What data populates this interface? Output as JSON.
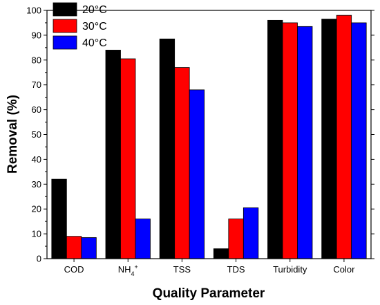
{
  "chart_data": {
    "type": "bar",
    "xlabel": "Quality Parameter",
    "ylabel": "Removal (%)",
    "ylim": [
      0,
      100
    ],
    "yticks": [
      0,
      10,
      20,
      30,
      40,
      50,
      60,
      70,
      80,
      90,
      100
    ],
    "categories": [
      "COD",
      "NH4+",
      "TSS",
      "TDS",
      "Turbidity",
      "Color"
    ],
    "series": [
      {
        "name": "20°C",
        "color": "#000000",
        "values": [
          32,
          84,
          88.5,
          4,
          96,
          96.5
        ]
      },
      {
        "name": "30°C",
        "color": "#ff0000",
        "values": [
          9,
          80.5,
          77,
          16,
          95,
          98
        ]
      },
      {
        "name": "40°C",
        "color": "#0000ff",
        "values": [
          8.5,
          16,
          68,
          20.5,
          93.5,
          95
        ]
      }
    ],
    "legend_position": "top-left",
    "grid": false
  }
}
